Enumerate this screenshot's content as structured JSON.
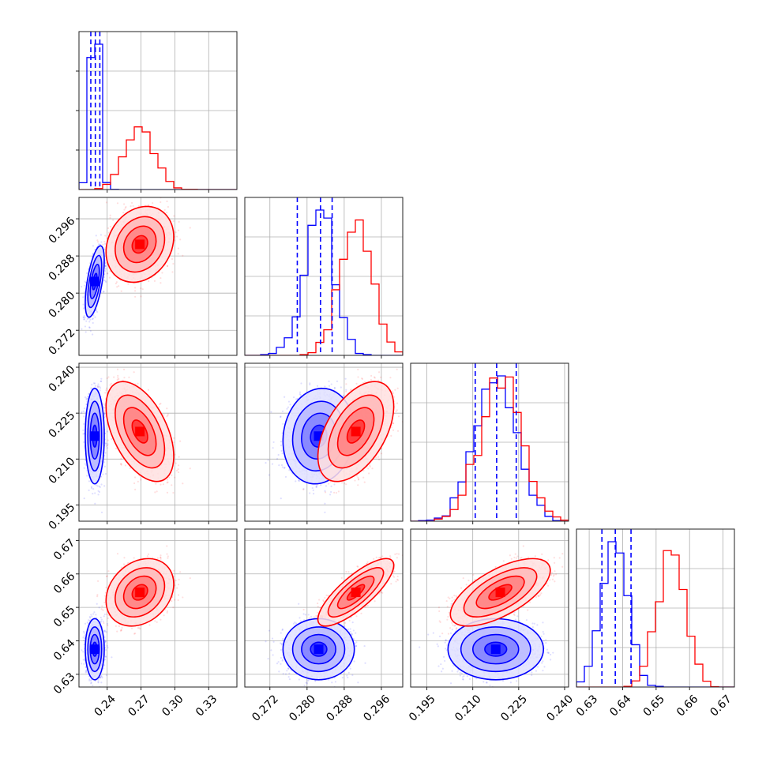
{
  "chart_data": {
    "type": "corner",
    "title": "",
    "parameters": [
      {
        "xlim": [
          0.215,
          0.355
        ],
        "ticks": [
          0.24,
          0.27,
          0.3,
          0.33
        ],
        "tick_labels": [
          "0.24",
          "0.27",
          "0.30",
          "0.33"
        ]
      },
      {
        "xlim": [
          0.2666,
          0.3006
        ],
        "ticks": [
          0.272,
          0.28,
          0.288,
          0.296
        ],
        "tick_labels": [
          "0.272",
          "0.280",
          "0.288",
          "0.296"
        ]
      },
      {
        "xlim": [
          0.1897,
          0.2413
        ],
        "ticks": [
          0.195,
          0.21,
          0.225,
          0.24
        ],
        "tick_labels": [
          "0.195",
          "0.210",
          "0.225",
          "0.240"
        ]
      },
      {
        "xlim": [
          0.6262,
          0.6734
        ],
        "ticks": [
          0.63,
          0.64,
          0.65,
          0.66,
          0.67
        ],
        "tick_labels": [
          "0.63",
          "0.64",
          "0.65",
          "0.66",
          "0.67"
        ]
      }
    ],
    "series": [
      {
        "color": "#0000ff",
        "mean": [
          0.229,
          0.2825,
          0.2175,
          0.6375
        ],
        "std": [
          0.0035,
          0.0032,
          0.0065,
          0.0038
        ],
        "corr": [
          [
            1,
            0.6,
            0,
            0
          ],
          [
            0.6,
            1,
            0.1,
            0
          ],
          [
            0,
            0.1,
            1,
            0
          ],
          [
            0,
            0,
            0,
            1
          ]
        ]
      },
      {
        "color": "#ff0000",
        "mean": [
          0.269,
          0.2905,
          0.219,
          0.6545
        ],
        "std": [
          0.0125,
          0.0034,
          0.0068,
          0.0042
        ],
        "corr": [
          [
            1,
            0.2,
            -0.5,
            0.25
          ],
          [
            0.2,
            1,
            0.5,
            0.8
          ],
          [
            -0.5,
            0.5,
            1,
            0.65
          ],
          [
            0.25,
            0.8,
            0.65,
            1
          ]
        ]
      }
    ],
    "quantile_lines": {
      "color": "#0000ff",
      "style": "dashed",
      "values": [
        [
          0.2255,
          0.2295,
          0.2335
        ],
        [
          0.2779,
          0.2829,
          0.2854
        ],
        [
          0.2108,
          0.2178,
          0.2242
        ],
        [
          0.6338,
          0.6378,
          0.6425
        ]
      ]
    },
    "grid": true,
    "legend": "none"
  }
}
